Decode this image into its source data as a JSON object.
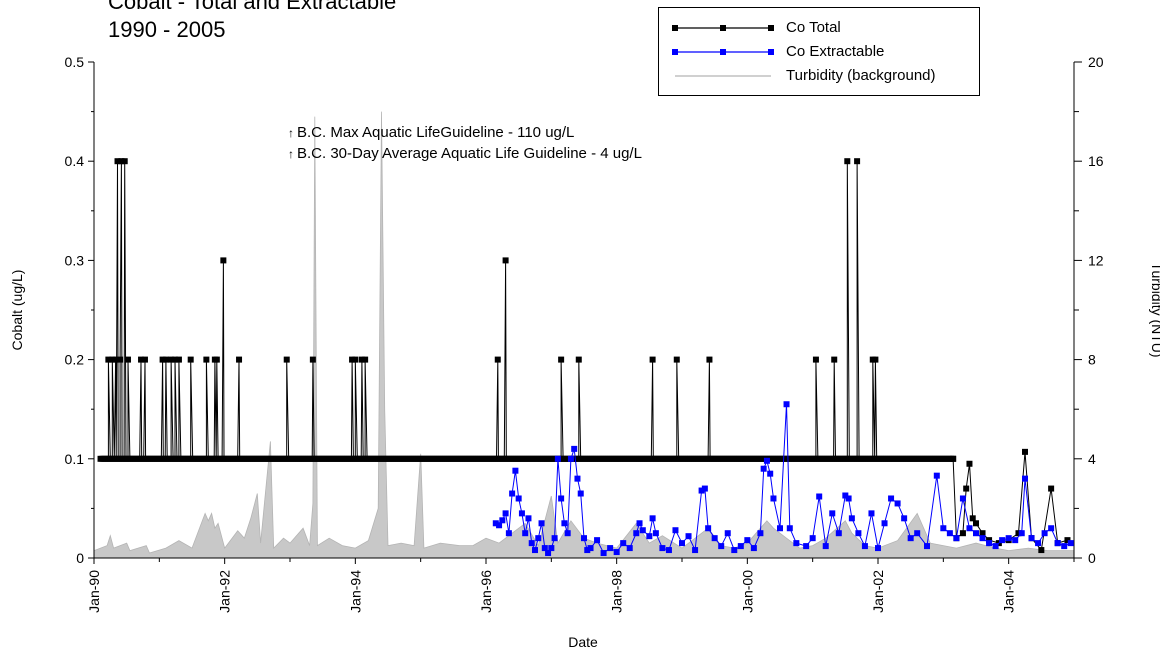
{
  "chart_data": {
    "type": "line",
    "title_lines": [
      "Cobalt - Total and Extractable",
      "1990 - 2005"
    ],
    "xlabel": "Date",
    "ylabel_left": "Cobalt (ug/L)",
    "ylabel_right": "Turbidity (NTU)",
    "xlim": [
      1990.0,
      2005.0
    ],
    "ylim_left": [
      0,
      0.5
    ],
    "ylim_right": [
      0,
      20
    ],
    "x_ticks": [
      {
        "x": 1990,
        "label": "Jan-90"
      },
      {
        "x": 1992,
        "label": "Jan-92"
      },
      {
        "x": 1994,
        "label": "Jan-94"
      },
      {
        "x": 1996,
        "label": "Jan-96"
      },
      {
        "x": 1998,
        "label": "Jan-98"
      },
      {
        "x": 2000,
        "label": "Jan-00"
      },
      {
        "x": 2002,
        "label": "Jan-02"
      },
      {
        "x": 2004,
        "label": "Jan-04"
      }
    ],
    "y_left_ticks": [
      "0",
      "0.1",
      "0.2",
      "0.3",
      "0.4",
      "0.5"
    ],
    "y_right_ticks": [
      "0",
      "4",
      "8",
      "12",
      "16",
      "20"
    ],
    "grid": false,
    "legend_position": "top-right",
    "annotations": [
      "B.C. Max Aquatic LifeGuideline  - 110 ug/L",
      "B.C. 30-Day Average Aquatic Life Guideline - 4 ug/L"
    ],
    "series": [
      {
        "name": "Co Total",
        "color": "#000000",
        "marker": "square",
        "axis": "left",
        "baseline": 0.1,
        "baseline_range": [
          1990.1,
          2003.15
        ],
        "spikes": [
          {
            "x": 1990.22,
            "y": 0.2
          },
          {
            "x": 1990.28,
            "y": 0.2
          },
          {
            "x": 1990.33,
            "y": 0.2
          },
          {
            "x": 1990.36,
            "y": 0.4
          },
          {
            "x": 1990.4,
            "y": 0.2
          },
          {
            "x": 1990.42,
            "y": 0.4
          },
          {
            "x": 1990.47,
            "y": 0.4
          },
          {
            "x": 1990.52,
            "y": 0.2
          },
          {
            "x": 1990.72,
            "y": 0.2
          },
          {
            "x": 1990.78,
            "y": 0.2
          },
          {
            "x": 1991.05,
            "y": 0.2
          },
          {
            "x": 1991.1,
            "y": 0.2
          },
          {
            "x": 1991.18,
            "y": 0.2
          },
          {
            "x": 1991.24,
            "y": 0.2
          },
          {
            "x": 1991.3,
            "y": 0.2
          },
          {
            "x": 1991.48,
            "y": 0.2
          },
          {
            "x": 1991.72,
            "y": 0.2
          },
          {
            "x": 1991.85,
            "y": 0.2
          },
          {
            "x": 1991.88,
            "y": 0.2
          },
          {
            "x": 1991.98,
            "y": 0.3
          },
          {
            "x": 1992.22,
            "y": 0.2
          },
          {
            "x": 1992.95,
            "y": 0.2
          },
          {
            "x": 1993.35,
            "y": 0.2
          },
          {
            "x": 1993.95,
            "y": 0.2
          },
          {
            "x": 1994.0,
            "y": 0.2
          },
          {
            "x": 1994.1,
            "y": 0.2
          },
          {
            "x": 1994.15,
            "y": 0.2
          },
          {
            "x": 1996.18,
            "y": 0.2
          },
          {
            "x": 1996.3,
            "y": 0.3
          },
          {
            "x": 1997.15,
            "y": 0.2
          },
          {
            "x": 1997.42,
            "y": 0.2
          },
          {
            "x": 1998.55,
            "y": 0.2
          },
          {
            "x": 1998.92,
            "y": 0.2
          },
          {
            "x": 1999.42,
            "y": 0.2
          },
          {
            "x": 2001.05,
            "y": 0.2
          },
          {
            "x": 2001.33,
            "y": 0.2
          },
          {
            "x": 2001.53,
            "y": 0.4
          },
          {
            "x": 2001.68,
            "y": 0.4
          },
          {
            "x": 2001.92,
            "y": 0.2
          },
          {
            "x": 2001.96,
            "y": 0.2
          }
        ],
        "tail": [
          {
            "x": 2003.15,
            "y": 0.1
          },
          {
            "x": 2003.2,
            "y": 0.02
          },
          {
            "x": 2003.3,
            "y": 0.025
          },
          {
            "x": 2003.35,
            "y": 0.07
          },
          {
            "x": 2003.4,
            "y": 0.095
          },
          {
            "x": 2003.45,
            "y": 0.04
          },
          {
            "x": 2003.5,
            "y": 0.035
          },
          {
            "x": 2003.6,
            "y": 0.025
          },
          {
            "x": 2003.7,
            "y": 0.018
          },
          {
            "x": 2003.85,
            "y": 0.015
          },
          {
            "x": 2004.0,
            "y": 0.018
          },
          {
            "x": 2004.15,
            "y": 0.025
          },
          {
            "x": 2004.25,
            "y": 0.107
          },
          {
            "x": 2004.35,
            "y": 0.02
          },
          {
            "x": 2004.5,
            "y": 0.008
          },
          {
            "x": 2004.65,
            "y": 0.07
          },
          {
            "x": 2004.75,
            "y": 0.015
          },
          {
            "x": 2004.9,
            "y": 0.018
          }
        ]
      },
      {
        "name": "Co Extractable",
        "color": "#0000ff",
        "marker": "square",
        "axis": "left",
        "points": [
          [
            1996.15,
            0.035
          ],
          [
            1996.2,
            0.033
          ],
          [
            1996.25,
            0.038
          ],
          [
            1996.3,
            0.045
          ],
          [
            1996.35,
            0.025
          ],
          [
            1996.4,
            0.065
          ],
          [
            1996.45,
            0.088
          ],
          [
            1996.5,
            0.06
          ],
          [
            1996.55,
            0.045
          ],
          [
            1996.6,
            0.025
          ],
          [
            1996.65,
            0.04
          ],
          [
            1996.7,
            0.015
          ],
          [
            1996.75,
            0.008
          ],
          [
            1996.8,
            0.02
          ],
          [
            1996.85,
            0.035
          ],
          [
            1996.9,
            0.01
          ],
          [
            1996.95,
            0.005
          ],
          [
            1997.0,
            0.01
          ],
          [
            1997.05,
            0.02
          ],
          [
            1997.1,
            0.1
          ],
          [
            1997.15,
            0.06
          ],
          [
            1997.2,
            0.035
          ],
          [
            1997.25,
            0.025
          ],
          [
            1997.3,
            0.1
          ],
          [
            1997.35,
            0.11
          ],
          [
            1997.4,
            0.08
          ],
          [
            1997.45,
            0.065
          ],
          [
            1997.5,
            0.02
          ],
          [
            1997.55,
            0.008
          ],
          [
            1997.6,
            0.01
          ],
          [
            1997.7,
            0.018
          ],
          [
            1997.8,
            0.005
          ],
          [
            1997.9,
            0.01
          ],
          [
            1998.0,
            0.006
          ],
          [
            1998.1,
            0.015
          ],
          [
            1998.2,
            0.01
          ],
          [
            1998.3,
            0.025
          ],
          [
            1998.35,
            0.035
          ],
          [
            1998.4,
            0.028
          ],
          [
            1998.5,
            0.022
          ],
          [
            1998.55,
            0.04
          ],
          [
            1998.6,
            0.025
          ],
          [
            1998.7,
            0.01
          ],
          [
            1998.8,
            0.008
          ],
          [
            1998.9,
            0.028
          ],
          [
            1999.0,
            0.015
          ],
          [
            1999.1,
            0.022
          ],
          [
            1999.2,
            0.008
          ],
          [
            1999.3,
            0.068
          ],
          [
            1999.35,
            0.07
          ],
          [
            1999.4,
            0.03
          ],
          [
            1999.5,
            0.02
          ],
          [
            1999.6,
            0.012
          ],
          [
            1999.7,
            0.025
          ],
          [
            1999.8,
            0.008
          ],
          [
            1999.9,
            0.012
          ],
          [
            2000.0,
            0.018
          ],
          [
            2000.1,
            0.01
          ],
          [
            2000.2,
            0.025
          ],
          [
            2000.25,
            0.09
          ],
          [
            2000.3,
            0.098
          ],
          [
            2000.35,
            0.085
          ],
          [
            2000.4,
            0.06
          ],
          [
            2000.5,
            0.03
          ],
          [
            2000.6,
            0.155
          ],
          [
            2000.65,
            0.03
          ],
          [
            2000.75,
            0.015
          ],
          [
            2000.9,
            0.012
          ],
          [
            2001.0,
            0.02
          ],
          [
            2001.1,
            0.062
          ],
          [
            2001.2,
            0.012
          ],
          [
            2001.3,
            0.045
          ],
          [
            2001.4,
            0.025
          ],
          [
            2001.5,
            0.063
          ],
          [
            2001.55,
            0.06
          ],
          [
            2001.6,
            0.04
          ],
          [
            2001.7,
            0.025
          ],
          [
            2001.8,
            0.012
          ],
          [
            2001.9,
            0.045
          ],
          [
            2002.0,
            0.01
          ],
          [
            2002.1,
            0.035
          ],
          [
            2002.2,
            0.06
          ],
          [
            2002.3,
            0.055
          ],
          [
            2002.4,
            0.04
          ],
          [
            2002.5,
            0.02
          ],
          [
            2002.6,
            0.025
          ],
          [
            2002.75,
            0.012
          ],
          [
            2002.9,
            0.083
          ],
          [
            2003.0,
            0.03
          ],
          [
            2003.1,
            0.025
          ],
          [
            2003.2,
            0.02
          ],
          [
            2003.3,
            0.06
          ],
          [
            2003.4,
            0.03
          ],
          [
            2003.5,
            0.025
          ],
          [
            2003.6,
            0.02
          ],
          [
            2003.7,
            0.015
          ],
          [
            2003.8,
            0.012
          ],
          [
            2003.9,
            0.018
          ],
          [
            2004.0,
            0.02
          ],
          [
            2004.1,
            0.018
          ],
          [
            2004.2,
            0.025
          ],
          [
            2004.25,
            0.08
          ],
          [
            2004.35,
            0.02
          ],
          [
            2004.45,
            0.015
          ],
          [
            2004.55,
            0.025
          ],
          [
            2004.65,
            0.03
          ],
          [
            2004.75,
            0.015
          ],
          [
            2004.85,
            0.012
          ],
          [
            2004.95,
            0.015
          ]
        ]
      },
      {
        "name": "Turbidity (background)",
        "color": "#b4b4b4",
        "fill": "#c8c8c8",
        "axis": "right",
        "points": [
          [
            1990.0,
            0.3
          ],
          [
            1990.2,
            0.5
          ],
          [
            1990.25,
            0.9
          ],
          [
            1990.3,
            0.4
          ],
          [
            1990.5,
            0.6
          ],
          [
            1990.55,
            0.3
          ],
          [
            1990.8,
            0.5
          ],
          [
            1990.85,
            0.2
          ],
          [
            1991.1,
            0.4
          ],
          [
            1991.3,
            0.7
          ],
          [
            1991.5,
            0.4
          ],
          [
            1991.7,
            1.8
          ],
          [
            1991.75,
            1.5
          ],
          [
            1991.8,
            1.8
          ],
          [
            1991.85,
            1.2
          ],
          [
            1991.9,
            1.4
          ],
          [
            1992.0,
            0.4
          ],
          [
            1992.2,
            1.1
          ],
          [
            1992.3,
            0.8
          ],
          [
            1992.4,
            1.6
          ],
          [
            1992.5,
            2.6
          ],
          [
            1992.55,
            0.6
          ],
          [
            1992.7,
            4.7
          ],
          [
            1992.75,
            0.4
          ],
          [
            1992.9,
            0.8
          ],
          [
            1993.0,
            0.6
          ],
          [
            1993.2,
            1.2
          ],
          [
            1993.3,
            0.5
          ],
          [
            1993.35,
            2.2
          ],
          [
            1993.38,
            17.8
          ],
          [
            1993.42,
            0.5
          ],
          [
            1993.6,
            0.8
          ],
          [
            1993.8,
            0.5
          ],
          [
            1994.0,
            0.4
          ],
          [
            1994.2,
            0.7
          ],
          [
            1994.35,
            2.0
          ],
          [
            1994.4,
            18.0
          ],
          [
            1994.45,
            6.0
          ],
          [
            1994.5,
            0.5
          ],
          [
            1994.7,
            0.6
          ],
          [
            1994.9,
            0.5
          ],
          [
            1995.0,
            4.2
          ],
          [
            1995.05,
            0.4
          ],
          [
            1995.3,
            0.6
          ],
          [
            1995.6,
            0.5
          ],
          [
            1995.8,
            0.5
          ],
          [
            1996.0,
            0.8
          ],
          [
            1996.2,
            0.6
          ],
          [
            1996.4,
            1.0
          ],
          [
            1996.6,
            1.4
          ],
          [
            1996.8,
            0.5
          ],
          [
            1997.0,
            2.5
          ],
          [
            1997.1,
            0.6
          ],
          [
            1997.3,
            1.5
          ],
          [
            1997.5,
            0.8
          ],
          [
            1997.7,
            0.6
          ],
          [
            1998.0,
            0.4
          ],
          [
            1998.3,
            1.4
          ],
          [
            1998.5,
            0.6
          ],
          [
            1998.7,
            0.9
          ],
          [
            1999.0,
            0.4
          ],
          [
            1999.2,
            0.8
          ],
          [
            1999.4,
            1.2
          ],
          [
            1999.6,
            0.5
          ],
          [
            1999.8,
            0.4
          ],
          [
            2000.0,
            0.6
          ],
          [
            2000.2,
            1.2
          ],
          [
            2000.3,
            1.5
          ],
          [
            2000.4,
            1.2
          ],
          [
            2000.6,
            0.8
          ],
          [
            2000.8,
            0.4
          ],
          [
            2001.0,
            0.5
          ],
          [
            2001.2,
            0.8
          ],
          [
            2001.5,
            1.5
          ],
          [
            2001.6,
            1.0
          ],
          [
            2001.8,
            0.5
          ],
          [
            2002.0,
            0.4
          ],
          [
            2002.3,
            0.7
          ],
          [
            2002.6,
            1.8
          ],
          [
            2002.8,
            0.6
          ],
          [
            2003.0,
            0.5
          ],
          [
            2003.2,
            0.4
          ],
          [
            2003.5,
            0.6
          ],
          [
            2003.8,
            0.4
          ],
          [
            2004.0,
            0.3
          ],
          [
            2004.3,
            0.4
          ],
          [
            2004.6,
            0.3
          ],
          [
            2005.0,
            0.3
          ]
        ]
      }
    ]
  }
}
